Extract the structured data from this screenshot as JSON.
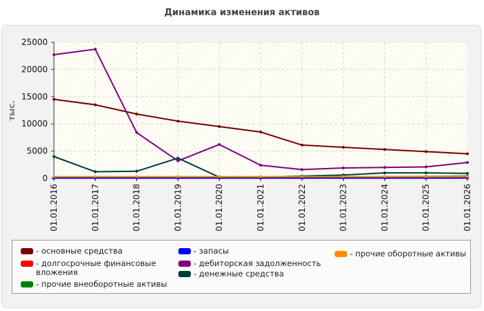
{
  "chart_data": {
    "type": "line",
    "title": "Динамика изменения активов",
    "ylabel": "тыс.",
    "ylim": [
      0,
      25000
    ],
    "yticks": [
      0,
      5000,
      10000,
      15000,
      20000,
      25000
    ],
    "categories": [
      "01.01.2016",
      "01.01.2017",
      "01.01.2018",
      "01.01.2019",
      "01.01.2020",
      "01.01.2021",
      "01.01.2022",
      "01.01.2023",
      "01.01.2024",
      "01.01.2025",
      "01.01.2026"
    ],
    "grid": true,
    "legend_position": "bottom",
    "series": [
      {
        "name": "основные средства",
        "color": "#7a0000",
        "values": [
          14500,
          13500,
          11800,
          10500,
          9500,
          8500,
          6100,
          5700,
          5300,
          4900,
          4500
        ]
      },
      {
        "name": "долгосрочные финансовые вложения",
        "color": "#ff0000",
        "values": [
          200,
          200,
          200,
          200,
          200,
          200,
          200,
          200,
          200,
          200,
          200
        ]
      },
      {
        "name": "прочие внеоборотные активы",
        "color": "#008000",
        "values": [
          100,
          100,
          100,
          100,
          100,
          100,
          150,
          200,
          300,
          350,
          400
        ]
      },
      {
        "name": "запасы",
        "color": "#0000ff",
        "values": [
          50,
          50,
          50,
          50,
          50,
          50,
          50,
          50,
          50,
          50,
          50
        ]
      },
      {
        "name": "дебиторская задолженность",
        "color": "#800080",
        "values": [
          22700,
          23700,
          8400,
          3200,
          6200,
          2400,
          1600,
          1900,
          2000,
          2100,
          2900
        ]
      },
      {
        "name": "денежные средства",
        "color": "#003b3b",
        "values": [
          4000,
          1200,
          1300,
          3700,
          200,
          200,
          400,
          600,
          1000,
          1000,
          900
        ]
      },
      {
        "name": "прочие оборотные активы",
        "color": "#ff8c00",
        "values": [
          300,
          300,
          300,
          300,
          300,
          300,
          300,
          300,
          300,
          300,
          300
        ]
      }
    ]
  }
}
